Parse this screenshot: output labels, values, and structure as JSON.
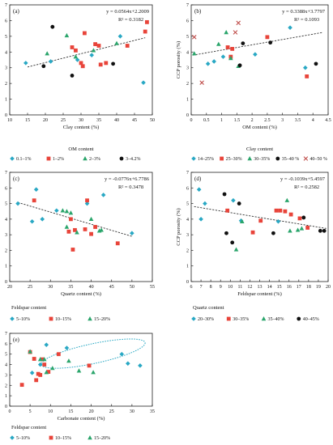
{
  "chart_data": [
    {
      "type": "scatter",
      "panel_label": "(a)",
      "equation": "y = 0.0564x+2.2009",
      "r2": "R² = 0.3182",
      "xlabel": "Clay content (%)",
      "ylabel": "CCP porosity (%)",
      "xlim": [
        10,
        50
      ],
      "ylim": [
        0,
        7
      ],
      "xticks": [
        10,
        15,
        20,
        25,
        30,
        35,
        40,
        45,
        50
      ],
      "yticks": [
        0,
        1,
        2,
        3,
        4,
        5,
        6,
        7
      ],
      "trendline": {
        "slope": 0.0564,
        "intercept": 2.2009,
        "x_range": [
          15,
          48
        ]
      },
      "legend_title": "OM content",
      "series": [
        {
          "name": "0.1–1%",
          "color": "#29a8c4",
          "marker": "diamond",
          "points": [
            [
              14.5,
              3.3
            ],
            [
              21.5,
              3.4
            ],
            [
              29,
              3.5
            ],
            [
              33,
              3.8
            ],
            [
              41,
              5.0
            ],
            [
              47.5,
              2.05
            ]
          ]
        },
        {
          "name": "1–2%",
          "color": "#e8443a",
          "marker": "square",
          "points": [
            [
              27.5,
              4.3
            ],
            [
              28.5,
              4.1
            ],
            [
              30,
              3.3
            ],
            [
              30.5,
              3.1
            ],
            [
              31,
              5.2
            ],
            [
              34,
              4.5
            ],
            [
              35,
              4.4
            ],
            [
              35.5,
              3.2
            ],
            [
              37,
              3.3
            ],
            [
              43,
              4.4
            ],
            [
              48,
              5.3
            ],
            [
              48.5,
              5.9
            ]
          ]
        },
        {
          "name": "2–3%",
          "color": "#2aa56b",
          "marker": "triangle",
          "points": [
            [
              20.5,
              3.9
            ],
            [
              26,
              5.05
            ],
            [
              28.5,
              3.7
            ],
            [
              33.5,
              4.1
            ],
            [
              40,
              4.55
            ]
          ]
        },
        {
          "name": "3–4.2%",
          "color": "#111111",
          "marker": "circle",
          "points": [
            [
              19.5,
              3.1
            ],
            [
              22,
              5.6
            ],
            [
              27.5,
              2.5
            ],
            [
              39,
              3.25
            ]
          ]
        }
      ]
    },
    {
      "type": "scatter",
      "panel_label": "(b)",
      "equation": "y = 0.3388x+3.7797",
      "r2": "R² = 0.1093",
      "xlabel": "OM content (%)",
      "ylabel": "CCP porosity (%)",
      "xlim": [
        0,
        4.5
      ],
      "ylim": [
        0,
        7
      ],
      "xticks": [
        0,
        0.5,
        1.0,
        1.5,
        2.0,
        2.5,
        3.0,
        3.5,
        4.0,
        4.5
      ],
      "yticks": [
        0,
        1,
        2,
        3,
        4,
        5,
        6,
        7
      ],
      "trendline": {
        "slope": 0.3388,
        "intercept": 3.7797,
        "x_range": [
          0.05,
          4.3
        ]
      },
      "legend_title": "Clay content",
      "series": [
        {
          "name": "14–25%",
          "color": "#29a8c4",
          "marker": "diamond",
          "points": [
            [
              0.55,
              3.25
            ],
            [
              0.75,
              3.4
            ],
            [
              1.05,
              3.7
            ],
            [
              2.1,
              3.85
            ],
            [
              3.25,
              5.55
            ],
            [
              3.75,
              3.0
            ]
          ]
        },
        {
          "name": "25–30%",
          "color": "#e8443a",
          "marker": "square",
          "points": [
            [
              1.2,
              4.3
            ],
            [
              1.3,
              3.7
            ],
            [
              1.35,
              4.2
            ],
            [
              2.5,
              4.95
            ],
            [
              3.8,
              2.45
            ]
          ]
        },
        {
          "name": "30–35%",
          "color": "#2aa56b",
          "marker": "triangle",
          "points": [
            [
              0.1,
              3.9
            ],
            [
              0.9,
              4.5
            ],
            [
              1.15,
              5.25
            ],
            [
              1.3,
              3.6
            ],
            [
              1.55,
              3.1
            ]
          ]
        },
        {
          "name": "35–40 %",
          "color": "#111111",
          "marker": "circle",
          "points": [
            [
              1.6,
              3.15
            ],
            [
              1.7,
              4.55
            ],
            [
              2.6,
              4.6
            ],
            [
              4.1,
              3.25
            ]
          ]
        },
        {
          "name": "40–50 %",
          "color": "#c0504d",
          "marker": "x",
          "points": [
            [
              0.1,
              4.95
            ],
            [
              0.35,
              2.05
            ],
            [
              1.45,
              5.25
            ],
            [
              1.55,
              5.85
            ]
          ]
        }
      ]
    },
    {
      "type": "scatter",
      "panel_label": "(c)",
      "equation": "y = -0.0776x+6.7786",
      "r2": "R² = 0.3478",
      "xlabel": "Quartz content (%)",
      "ylabel": "CCP porosity (%)",
      "xlim": [
        20,
        55
      ],
      "ylim": [
        0,
        7
      ],
      "xticks": [
        20,
        25,
        30,
        35,
        40,
        45,
        50,
        55
      ],
      "yticks": [
        0,
        1,
        2,
        3,
        4,
        5,
        6,
        7
      ],
      "trendline": {
        "slope": -0.0776,
        "intercept": 6.7786,
        "x_range": [
          22,
          50
        ]
      },
      "legend_title": "Feldspar content",
      "series": [
        {
          "name": "5–10%",
          "color": "#29a8c4",
          "marker": "diamond",
          "points": [
            [
              22,
              5.0
            ],
            [
              25.5,
              3.85
            ],
            [
              26.5,
              5.9
            ],
            [
              28,
              4.0
            ],
            [
              31.5,
              4.55
            ],
            [
              39,
              5.0
            ],
            [
              43,
              5.55
            ],
            [
              50,
              3.1
            ]
          ]
        },
        {
          "name": "10–15%",
          "color": "#e8443a",
          "marker": "square",
          "points": [
            [
              26,
              5.2
            ],
            [
              34.5,
              3.2
            ],
            [
              35,
              4.0
            ],
            [
              35.5,
              2.05
            ],
            [
              36,
              3.3
            ],
            [
              38.5,
              3.35
            ],
            [
              39,
              5.2
            ],
            [
              40,
              3.05
            ],
            [
              41,
              3.5
            ],
            [
              46.5,
              2.45
            ]
          ]
        },
        {
          "name": "15–20%",
          "color": "#2aa56b",
          "marker": "triangle",
          "points": [
            [
              33,
              4.55
            ],
            [
              34,
              4.5
            ],
            [
              35,
              4.4
            ],
            [
              34,
              3.5
            ],
            [
              36.5,
              3.15
            ],
            [
              40,
              4.0
            ],
            [
              42,
              3.25
            ],
            [
              42.5,
              3.3
            ]
          ]
        }
      ]
    },
    {
      "type": "scatter",
      "panel_label": "(d)",
      "equation": "y = -0.1039x+5.4597",
      "r2": "R² = 0.2582",
      "xlabel": "Feldspar content (%)",
      "ylabel": "CCP porosity (%)",
      "xlim": [
        6,
        20
      ],
      "ylim": [
        0,
        7
      ],
      "xticks": [
        6,
        7,
        8,
        9,
        10,
        11,
        12,
        13,
        14,
        15,
        16,
        17,
        18,
        19,
        20
      ],
      "yticks": [
        0,
        1,
        2,
        3,
        4,
        5,
        6,
        7
      ],
      "trendline": {
        "slope": -0.1039,
        "intercept": 5.4597,
        "x_range": [
          6.3,
          19.8
        ]
      },
      "legend_title": "Quartz content",
      "series": [
        {
          "name": "20–30%",
          "color": "#29a8c4",
          "marker": "diamond",
          "points": [
            [
              6.8,
              5.9
            ],
            [
              7.0,
              4.0
            ],
            [
              7.4,
              5.0
            ],
            [
              10.3,
              5.2
            ],
            [
              11.1,
              3.9
            ],
            [
              14.9,
              3.85
            ]
          ]
        },
        {
          "name": "30–35%",
          "color": "#e8443a",
          "marker": "square",
          "points": [
            [
              9.7,
              4.55
            ],
            [
              12.3,
              3.15
            ],
            [
              13.1,
              3.9
            ],
            [
              14.7,
              4.55
            ],
            [
              15.1,
              4.55
            ],
            [
              15.6,
              4.5
            ],
            [
              16.2,
              4.3
            ],
            [
              17.1,
              4.05
            ],
            [
              17.9,
              3.45
            ]
          ]
        },
        {
          "name": "35–40%",
          "color": "#2aa56b",
          "marker": "triangle",
          "points": [
            [
              10.6,
              2.05
            ],
            [
              11.2,
              3.85
            ],
            [
              15.8,
              5.2
            ],
            [
              16.1,
              3.25
            ],
            [
              16.9,
              3.3
            ],
            [
              17.3,
              3.4
            ]
          ]
        },
        {
          "name": "40–45%",
          "color": "#111111",
          "marker": "circle",
          "points": [
            [
              9.4,
              5.6
            ],
            [
              9.6,
              3.1
            ],
            [
              10.2,
              2.5
            ],
            [
              10.9,
              5.0
            ],
            [
              14.4,
              3.1
            ],
            [
              17.5,
              4.1
            ],
            [
              19.2,
              3.25
            ],
            [
              19.6,
              3.25
            ]
          ]
        }
      ]
    },
    {
      "type": "scatter",
      "panel_label": "(e)",
      "xlabel": "Carbonate content (%)",
      "ylabel": "CCP porosity (%)",
      "xlim": [
        0,
        35
      ],
      "ylim": [
        0,
        7
      ],
      "xticks": [
        0,
        5,
        10,
        15,
        20,
        25,
        30,
        35
      ],
      "yticks": [
        0,
        1,
        2,
        3,
        4,
        5,
        6,
        7
      ],
      "highlight_ellipse": {
        "cx": 20.5,
        "cy": 5.05,
        "rx": 13,
        "ry": 0.95,
        "angle_deg": -12,
        "color": "#29a8c4"
      },
      "legend_title": "Feldspar content",
      "series": [
        {
          "name": "5–10%",
          "color": "#29a8c4",
          "marker": "diamond",
          "points": [
            [
              5.5,
              3.2
            ],
            [
              7.5,
              4.0
            ],
            [
              9.0,
              5.9
            ],
            [
              14.0,
              5.6
            ],
            [
              27.5,
              5.0
            ],
            [
              29.0,
              4.1
            ],
            [
              32.0,
              3.9
            ]
          ]
        },
        {
          "name": "10–15%",
          "color": "#e8443a",
          "marker": "square",
          "points": [
            [
              3.0,
              2.05
            ],
            [
              5.0,
              5.2
            ],
            [
              6.0,
              4.55
            ],
            [
              6.5,
              2.5
            ],
            [
              7.0,
              3.1
            ],
            [
              7.5,
              3.0
            ],
            [
              8.0,
              4.5
            ],
            [
              8.5,
              4.0
            ],
            [
              9.5,
              3.3
            ],
            [
              12.0,
              5.0
            ],
            [
              19.5,
              3.9
            ]
          ]
        },
        {
          "name": "15–20%",
          "color": "#2aa56b",
          "marker": "triangle",
          "points": [
            [
              5.0,
              5.25
            ],
            [
              7.5,
              4.5
            ],
            [
              8.5,
              4.5
            ],
            [
              9.0,
              3.25
            ],
            [
              10.5,
              3.65
            ],
            [
              14.5,
              4.35
            ],
            [
              17.0,
              3.4
            ],
            [
              20.5,
              3.25
            ]
          ]
        }
      ]
    }
  ]
}
